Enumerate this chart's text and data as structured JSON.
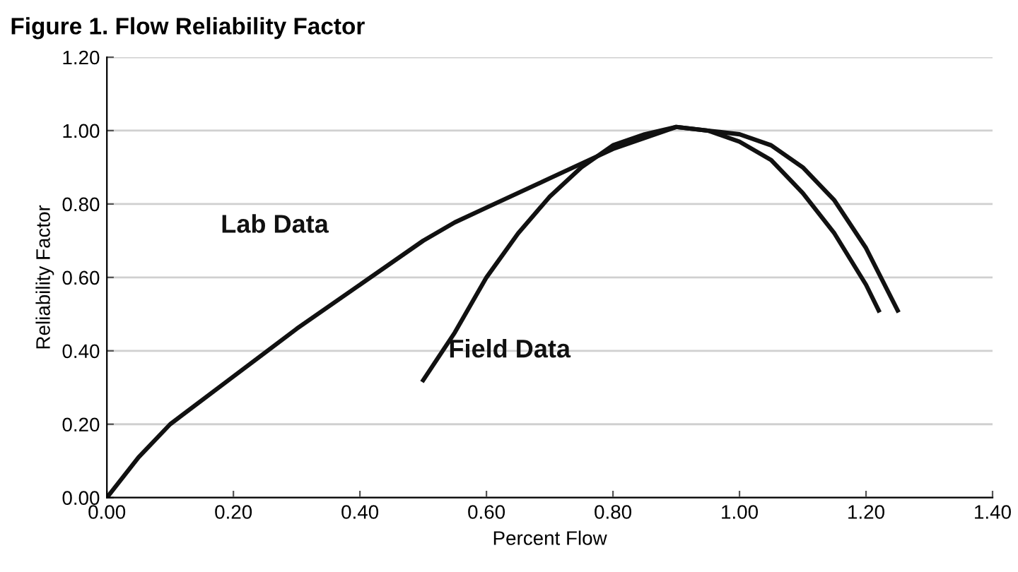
{
  "chart_data": {
    "type": "line",
    "title": "Figure 1. Flow Reliability Factor",
    "xlabel": "Percent Flow",
    "ylabel": "Reliability Factor",
    "xlim": [
      0,
      1.4
    ],
    "ylim": [
      0,
      1.2
    ],
    "xticks": [
      {
        "value": 0,
        "label": "0.00"
      },
      {
        "value": 0.2,
        "label": "0.20"
      },
      {
        "value": 0.4,
        "label": "0.40"
      },
      {
        "value": 0.6,
        "label": "0.60"
      },
      {
        "value": 0.8,
        "label": "0.80"
      },
      {
        "value": 1.0,
        "label": "1.00"
      },
      {
        "value": 1.2,
        "label": "1.20"
      },
      {
        "value": 1.4,
        "label": "1.40"
      }
    ],
    "yticks": [
      {
        "value": 0,
        "label": "0.00"
      },
      {
        "value": 0.2,
        "label": "0.20"
      },
      {
        "value": 0.4,
        "label": "0.40"
      },
      {
        "value": 0.6,
        "label": "0.60"
      },
      {
        "value": 0.8,
        "label": "0.80"
      },
      {
        "value": 1.0,
        "label": "1.00"
      },
      {
        "value": 1.2,
        "label": "1.20"
      }
    ],
    "grid": "y",
    "marker": "none",
    "line_style": "solid",
    "series": [
      {
        "name": "Lab Data",
        "color": "#111111",
        "x": [
          0,
          0.05,
          0.1,
          0.2,
          0.3,
          0.4,
          0.5,
          0.55,
          0.6,
          0.7,
          0.8,
          0.9,
          0.95,
          1.0,
          1.05,
          1.1,
          1.15,
          1.2,
          1.25
        ],
        "values": [
          0,
          0.11,
          0.2,
          0.33,
          0.46,
          0.58,
          0.7,
          0.75,
          0.79,
          0.87,
          0.95,
          1.01,
          1.0,
          0.99,
          0.96,
          0.9,
          0.81,
          0.68,
          0.51
        ]
      },
      {
        "name": "Field Data",
        "color": "#111111",
        "x": [
          0.5,
          0.55,
          0.6,
          0.65,
          0.7,
          0.75,
          0.8,
          0.85,
          0.9,
          0.95,
          1.0,
          1.05,
          1.1,
          1.15,
          1.2,
          1.22
        ],
        "values": [
          0.32,
          0.45,
          0.6,
          0.72,
          0.82,
          0.9,
          0.96,
          0.99,
          1.01,
          1.0,
          0.97,
          0.92,
          0.83,
          0.72,
          0.58,
          0.51
        ]
      }
    ]
  }
}
